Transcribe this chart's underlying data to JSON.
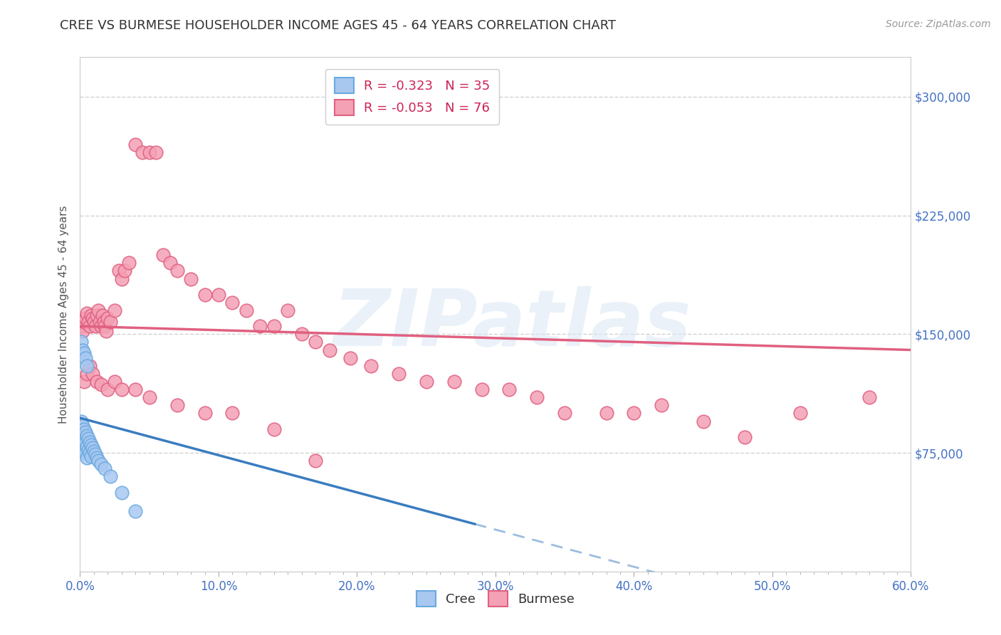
{
  "title": "CREE VS BURMESE HOUSEHOLDER INCOME AGES 45 - 64 YEARS CORRELATION CHART",
  "source": "Source: ZipAtlas.com",
  "ylabel": "Householder Income Ages 45 - 64 years",
  "xlim": [
    0.0,
    0.6
  ],
  "ylim": [
    0,
    325000
  ],
  "yticks": [
    0,
    75000,
    150000,
    225000,
    300000
  ],
  "ytick_labels": [
    "",
    "$75,000",
    "$150,000",
    "$225,000",
    "$300,000"
  ],
  "xtick_labels": [
    "0.0%",
    "",
    "",
    "",
    "",
    "",
    "",
    "",
    "",
    "",
    "10.0%",
    "",
    "",
    "",
    "",
    "",
    "",
    "",
    "",
    "",
    "20.0%",
    "",
    "",
    "",
    "",
    "",
    "",
    "",
    "",
    "",
    "30.0%",
    "",
    "",
    "",
    "",
    "",
    "",
    "",
    "",
    "",
    "40.0%",
    "",
    "",
    "",
    "",
    "",
    "",
    "",
    "",
    "",
    "50.0%",
    "",
    "",
    "",
    "",
    "",
    "",
    "",
    "",
    "",
    "60.0%"
  ],
  "xticks": [
    0.0,
    0.01,
    0.02,
    0.03,
    0.04,
    0.05,
    0.06,
    0.07,
    0.08,
    0.09,
    0.1,
    0.11,
    0.12,
    0.13,
    0.14,
    0.15,
    0.16,
    0.17,
    0.18,
    0.19,
    0.2,
    0.21,
    0.22,
    0.23,
    0.24,
    0.25,
    0.26,
    0.27,
    0.28,
    0.29,
    0.3,
    0.31,
    0.32,
    0.33,
    0.34,
    0.35,
    0.36,
    0.37,
    0.38,
    0.39,
    0.4,
    0.41,
    0.42,
    0.43,
    0.44,
    0.45,
    0.46,
    0.47,
    0.48,
    0.49,
    0.5,
    0.51,
    0.52,
    0.53,
    0.54,
    0.55,
    0.56,
    0.57,
    0.58,
    0.59,
    0.6
  ],
  "major_xticks": [
    0.0,
    0.1,
    0.2,
    0.3,
    0.4,
    0.5,
    0.6
  ],
  "major_xtick_labels": [
    "0.0%",
    "10.0%",
    "20.0%",
    "30.0%",
    "40.0%",
    "50.0%",
    "60.0%"
  ],
  "grid_color": "#cccccc",
  "bg_color": "#ffffff",
  "cree_color": "#a8c8f0",
  "burmese_color": "#f4a0b5",
  "cree_edge_color": "#6aaae0",
  "burmese_edge_color": "#e06080",
  "cree_line_color": "#3a7cc0",
  "burmese_line_color": "#e06080",
  "cree_r": -0.323,
  "cree_n": 35,
  "burmese_r": -0.053,
  "burmese_n": 76,
  "title_color": "#333333",
  "axis_label_color": "#555555",
  "tick_label_color": "#4472c4",
  "watermark": "ZIPatlas",
  "cree_x": [
    0.001,
    0.001,
    0.002,
    0.002,
    0.002,
    0.003,
    0.003,
    0.003,
    0.004,
    0.004,
    0.004,
    0.005,
    0.005,
    0.005,
    0.006,
    0.006,
    0.007,
    0.007,
    0.008,
    0.008,
    0.009,
    0.01,
    0.011,
    0.012,
    0.013,
    0.015,
    0.018,
    0.022,
    0.001,
    0.002,
    0.003,
    0.004,
    0.005,
    0.03,
    0.04
  ],
  "cree_y": [
    95000,
    88000,
    92000,
    85000,
    78000,
    90000,
    83000,
    76000,
    88000,
    82000,
    75000,
    86000,
    79000,
    72000,
    84000,
    77000,
    82000,
    75000,
    80000,
    73000,
    78000,
    76000,
    74000,
    72000,
    70000,
    68000,
    65000,
    60000,
    145000,
    140000,
    138000,
    135000,
    130000,
    50000,
    38000
  ],
  "burmese_x": [
    0.001,
    0.002,
    0.003,
    0.004,
    0.005,
    0.006,
    0.007,
    0.008,
    0.009,
    0.01,
    0.011,
    0.012,
    0.013,
    0.014,
    0.015,
    0.016,
    0.017,
    0.018,
    0.019,
    0.02,
    0.022,
    0.025,
    0.028,
    0.03,
    0.032,
    0.035,
    0.04,
    0.045,
    0.05,
    0.055,
    0.06,
    0.065,
    0.07,
    0.08,
    0.09,
    0.1,
    0.11,
    0.12,
    0.13,
    0.14,
    0.15,
    0.16,
    0.17,
    0.18,
    0.195,
    0.21,
    0.23,
    0.25,
    0.27,
    0.29,
    0.31,
    0.33,
    0.35,
    0.38,
    0.4,
    0.42,
    0.45,
    0.48,
    0.52,
    0.57,
    0.003,
    0.005,
    0.007,
    0.009,
    0.012,
    0.015,
    0.02,
    0.025,
    0.03,
    0.04,
    0.05,
    0.07,
    0.09,
    0.11,
    0.14,
    0.17
  ],
  "burmese_y": [
    155000,
    152000,
    158000,
    160000,
    163000,
    158000,
    155000,
    162000,
    160000,
    158000,
    155000,
    162000,
    165000,
    158000,
    155000,
    162000,
    158000,
    155000,
    152000,
    160000,
    158000,
    165000,
    190000,
    185000,
    190000,
    195000,
    270000,
    265000,
    265000,
    265000,
    200000,
    195000,
    190000,
    185000,
    175000,
    175000,
    170000,
    165000,
    155000,
    155000,
    165000,
    150000,
    145000,
    140000,
    135000,
    130000,
    125000,
    120000,
    120000,
    115000,
    115000,
    110000,
    100000,
    100000,
    100000,
    105000,
    95000,
    85000,
    100000,
    110000,
    120000,
    125000,
    130000,
    125000,
    120000,
    118000,
    115000,
    120000,
    115000,
    115000,
    110000,
    105000,
    100000,
    100000,
    90000,
    70000
  ]
}
